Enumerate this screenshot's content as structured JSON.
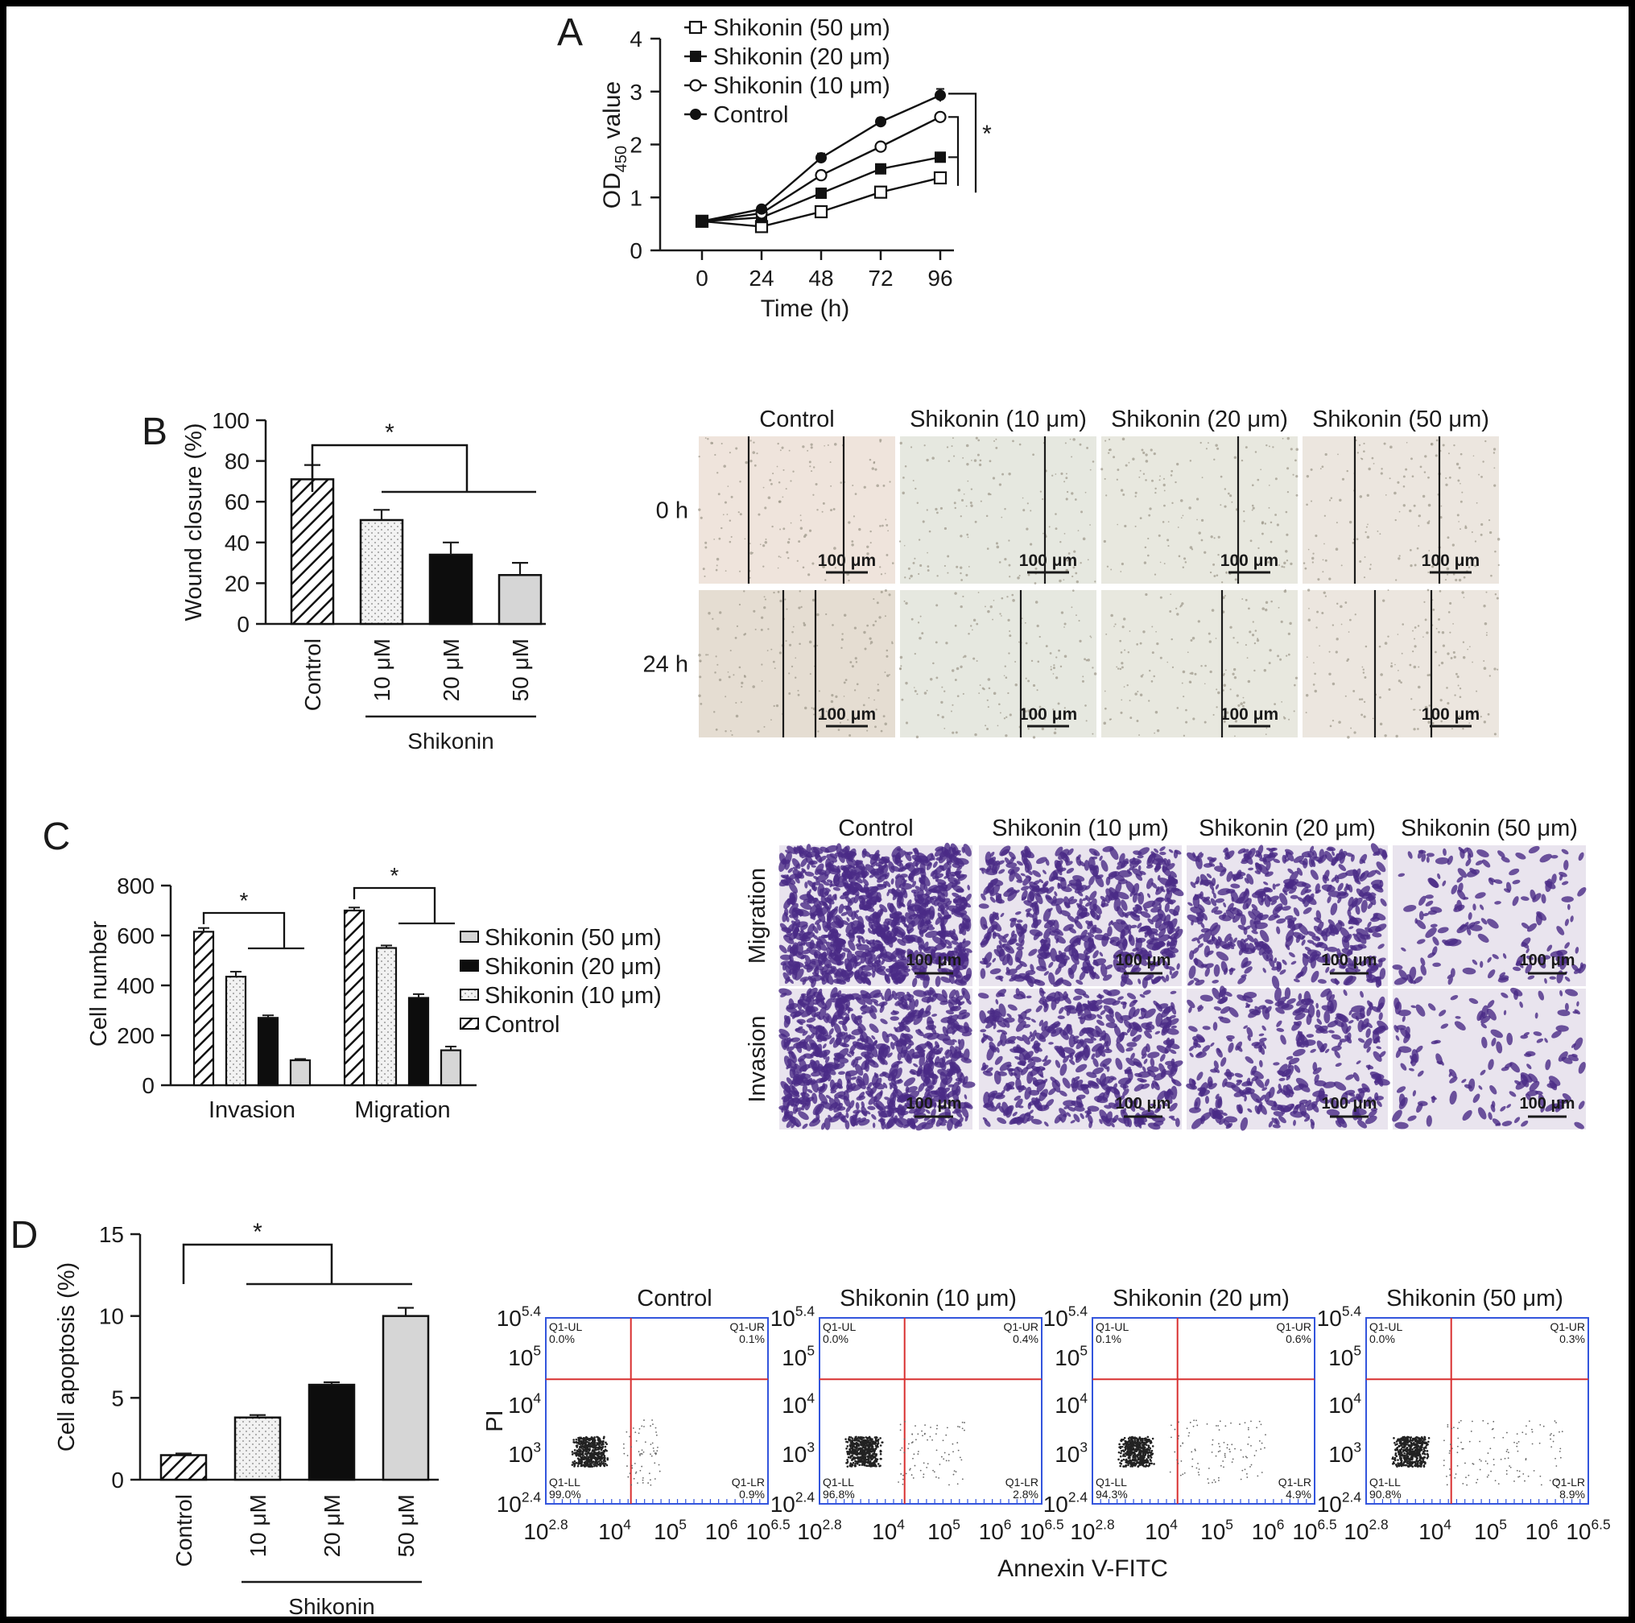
{
  "figure": {
    "panel_labels": [
      "A",
      "B",
      "C",
      "D"
    ]
  },
  "chart_data": [
    {
      "panel": "A",
      "type": "line",
      "x": [
        0,
        24,
        48,
        72,
        96
      ],
      "xticks": [
        "0",
        "24",
        "48",
        "72",
        "96"
      ],
      "xlabel": "Time (h)",
      "ylabel_main": "OD",
      "ylabel_sub": "450",
      "ylabel_tail": " value",
      "ylim": [
        0,
        4
      ],
      "yticks": [
        0,
        1,
        2,
        3,
        4
      ],
      "series": [
        {
          "name": "Shikonin (50 μm)",
          "marker": "open-square",
          "values": [
            0.55,
            0.45,
            0.73,
            1.1,
            1.37
          ],
          "err": [
            0.03,
            0.03,
            0.05,
            0.05,
            0.06
          ]
        },
        {
          "name": "Shikonin (20 μm)",
          "marker": "filled-square",
          "values": [
            0.55,
            0.62,
            1.08,
            1.54,
            1.76
          ],
          "err": [
            0.03,
            0.03,
            0.05,
            0.05,
            0.06
          ]
        },
        {
          "name": "Shikonin (10 μm)",
          "marker": "open-circle",
          "values": [
            0.55,
            0.7,
            1.42,
            1.96,
            2.52
          ],
          "err": [
            0.03,
            0.03,
            0.08,
            0.05,
            0.07
          ]
        },
        {
          "name": "Control",
          "marker": "filled-circle",
          "values": [
            0.55,
            0.78,
            1.75,
            2.43,
            2.93
          ],
          "err": [
            0.03,
            0.03,
            0.08,
            0.07,
            0.12
          ]
        }
      ],
      "significance": "*"
    },
    {
      "panel": "B",
      "type": "bar",
      "categories": [
        "Control",
        "10 μM",
        "20 μM",
        "50 μM"
      ],
      "patterns": [
        "hatch",
        "dots",
        "black",
        "lightgray"
      ],
      "values": [
        71,
        51,
        34,
        24
      ],
      "err": [
        7,
        5,
        6,
        6
      ],
      "ylabel": "Wound closure (%)",
      "ylim": [
        0,
        100
      ],
      "yticks": [
        0,
        20,
        40,
        60,
        80,
        100
      ],
      "group_label": "Shikonin",
      "significance": "*"
    },
    {
      "panel": "C",
      "type": "bar",
      "categories": [
        "Invasion",
        "Migration"
      ],
      "series": [
        {
          "name": "Control",
          "pattern": "hatch",
          "values": [
            615,
            700
          ],
          "err": [
            15,
            12
          ]
        },
        {
          "name": "Shikonin (10 μm)",
          "pattern": "dots",
          "values": [
            435,
            550
          ],
          "err": [
            20,
            10
          ]
        },
        {
          "name": "Shikonin (20 μm)",
          "pattern": "black",
          "values": [
            270,
            350
          ],
          "err": [
            10,
            15
          ]
        },
        {
          "name": "Shikonin (50 μm)",
          "pattern": "lightgray",
          "values": [
            100,
            140
          ],
          "err": [
            5,
            15
          ]
        }
      ],
      "legend_order": [
        "Shikonin (50 μm)",
        "Shikonin (20 μm)",
        "Shikonin (10 μm)",
        "Control"
      ],
      "ylabel": "Cell number",
      "ylim": [
        0,
        800
      ],
      "yticks": [
        0,
        200,
        400,
        600,
        800
      ],
      "significance": "*"
    },
    {
      "panel": "D",
      "type": "bar",
      "categories": [
        "Control",
        "10 μM",
        "20 μM",
        "50 μM"
      ],
      "patterns": [
        "hatch",
        "dots",
        "black",
        "lightgray"
      ],
      "values": [
        1.5,
        3.8,
        5.8,
        10.0
      ],
      "err": [
        0.1,
        0.15,
        0.15,
        0.5
      ],
      "ylabel": "Cell apoptosis (%)",
      "ylim": [
        0,
        15
      ],
      "yticks": [
        0,
        5,
        10,
        15
      ],
      "group_label": "Shikonin",
      "significance": "*"
    },
    {
      "panel": "D-flow",
      "type": "scatter",
      "titles": [
        "Control",
        "Shikonin (10 μm)",
        "Shikonin (20 μm)",
        "Shikonin (50 μm)"
      ],
      "xlabel": "Annexin V-FITC",
      "ylabel": "PI",
      "x_ticks": [
        [
          "10",
          "2.8"
        ],
        [
          "10",
          "4"
        ],
        [
          "10",
          "5"
        ],
        [
          "10",
          "6"
        ],
        [
          "10",
          "6.5"
        ]
      ],
      "y_ticks": [
        [
          "10",
          "5.4"
        ],
        [
          "10",
          "5"
        ],
        [
          "10",
          "4"
        ],
        [
          "10",
          "3"
        ],
        [
          "10",
          "2.4"
        ]
      ],
      "quadrants": [
        {
          "UL": "Q1-UL\n0.0%",
          "UR": "Q1-UR\n0.1%",
          "LL": "Q1-LL\n99.0%",
          "LR": "Q1-LR\n0.9%"
        },
        {
          "UL": "Q1-UL\n0.0%",
          "UR": "Q1-UR\n0.4%",
          "LL": "Q1-LL\n96.8%",
          "LR": "Q1-LR\n2.8%"
        },
        {
          "UL": "Q1-UL\n0.1%",
          "UR": "Q1-UR\n0.6%",
          "LL": "Q1-LL\n94.3%",
          "LR": "Q1-LR\n4.9%"
        },
        {
          "UL": "Q1-UL\n0.0%",
          "UR": "Q1-UR\n0.3%",
          "LL": "Q1-LL\n90.8%",
          "LR": "Q1-LR\n8.9%"
        }
      ]
    }
  ],
  "images": {
    "wound": {
      "columns": [
        "Control",
        "Shikonin (10 μm)",
        "Shikonin (20 μm)",
        "Shikonin (50 μm)"
      ],
      "rows": [
        "0 h",
        "24 h"
      ],
      "scale": "100 μm"
    },
    "transwell": {
      "columns": [
        "Control",
        "Shikonin (10 μm)",
        "Shikonin (20 μm)",
        "Shikonin (50 μm)"
      ],
      "rows": [
        "Migration",
        "Invasion"
      ],
      "scale": "100 μm"
    }
  }
}
